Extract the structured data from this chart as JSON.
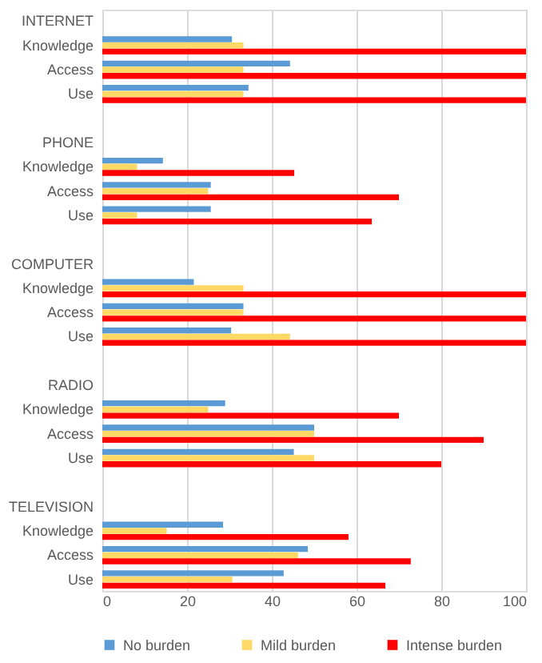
{
  "chart_data": {
    "type": "bar",
    "orientation": "horizontal",
    "categories": [
      "INTERNET",
      "Knowledge",
      "Access",
      "Use",
      null,
      "PHONE",
      "Knowledge",
      "Access",
      "Use",
      null,
      "COMPUTER",
      "Knowledge",
      "Access",
      "Use",
      null,
      "RADIO",
      "Knowledge",
      "Access",
      "Use",
      null,
      "TELEVISION",
      "Knowledge",
      "Access",
      "Use"
    ],
    "series": [
      {
        "name": "No burden",
        "color": "#5b9bd5",
        "values": [
          null,
          30.6,
          44.3,
          34.5,
          null,
          null,
          14.3,
          25.6,
          25.6,
          null,
          null,
          21.6,
          33.3,
          30.4,
          null,
          null,
          29,
          50,
          45.2,
          null,
          null,
          28.5,
          48.5,
          42.8
        ]
      },
      {
        "name": "Mild burden",
        "color": "#ffd966",
        "values": [
          null,
          33.3,
          33.3,
          33.3,
          null,
          null,
          8.2,
          25,
          8.2,
          null,
          null,
          33.3,
          33.3,
          44.3,
          null,
          null,
          25,
          50,
          50,
          null,
          null,
          15.2,
          46.2,
          30.7
        ]
      },
      {
        "name": "Intense burden",
        "color": "#ff0000",
        "values": [
          null,
          100,
          100,
          100,
          null,
          null,
          45.3,
          70,
          63.6,
          null,
          null,
          100,
          100,
          100,
          null,
          null,
          70,
          90,
          80,
          null,
          null,
          58.1,
          72.8,
          66.8
        ]
      }
    ],
    "xlim": [
      0,
      100
    ],
    "xticks": [
      0,
      20,
      40,
      60,
      80,
      100
    ],
    "grid": "x",
    "legend": "bottom"
  }
}
